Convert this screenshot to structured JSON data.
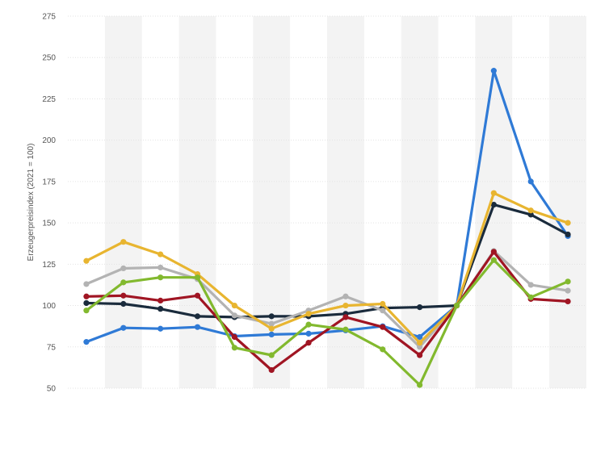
{
  "chart_data": {
    "type": "line",
    "title": "",
    "xlabel": "",
    "ylabel": "Erzeugerpreisindex (2021 = 100)",
    "ylim": [
      50,
      275
    ],
    "yticks": [
      50,
      75,
      100,
      125,
      150,
      175,
      200,
      225,
      250,
      275
    ],
    "grid": true,
    "legend": "none",
    "x_count": 14,
    "series": [
      {
        "color": "#2f7ad6",
        "values": [
          78,
          86.5,
          86,
          87,
          81.5,
          82.5,
          83,
          85,
          87.5,
          81,
          100,
          242,
          175,
          142
        ]
      },
      {
        "color": "#1a2b3c",
        "values": [
          101.5,
          101,
          98,
          93.5,
          93,
          93.5,
          93.5,
          95,
          98.5,
          99,
          100,
          161,
          155,
          143
        ]
      },
      {
        "color": "#b3b3b3",
        "values": [
          113,
          122.5,
          123,
          116,
          94,
          89,
          97,
          105.5,
          97,
          75,
          100,
          133,
          112.5,
          109
        ]
      },
      {
        "color": "#e8b530",
        "values": [
          127,
          138.5,
          131,
          119,
          100,
          86,
          95,
          100,
          101,
          77.5,
          100,
          168,
          157.5,
          150
        ]
      },
      {
        "color": "#a01523",
        "values": [
          105.5,
          106,
          103,
          106,
          81,
          61,
          77.5,
          93,
          87,
          70,
          100,
          132.5,
          104,
          102.5
        ]
      },
      {
        "color": "#82b92e",
        "values": [
          97,
          114,
          117,
          117,
          74.5,
          70,
          88.5,
          85.5,
          73.5,
          52,
          100,
          127.5,
          105,
          114.5
        ]
      }
    ]
  }
}
